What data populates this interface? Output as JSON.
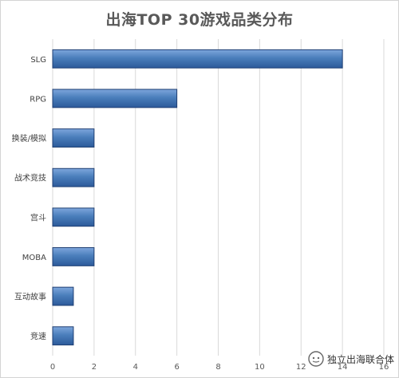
{
  "chart_data": {
    "type": "bar",
    "orientation": "horizontal",
    "title": "出海TOP 30游戏品类分布",
    "categories": [
      "SLG",
      "RPG",
      "换装/模拟",
      "战术竞技",
      "宫斗",
      "MOBA",
      "互动故事",
      "竞速"
    ],
    "values": [
      14,
      6,
      2,
      2,
      2,
      2,
      1,
      1
    ],
    "xlim": [
      0,
      16
    ],
    "xticks": [
      "0",
      "2",
      "4",
      "6",
      "8",
      "10",
      "12",
      "14",
      "16"
    ],
    "grid": true,
    "bar_color": "#4a7ebb"
  },
  "watermark": {
    "text": "独立出海联合体",
    "icon": "wechat-icon"
  }
}
